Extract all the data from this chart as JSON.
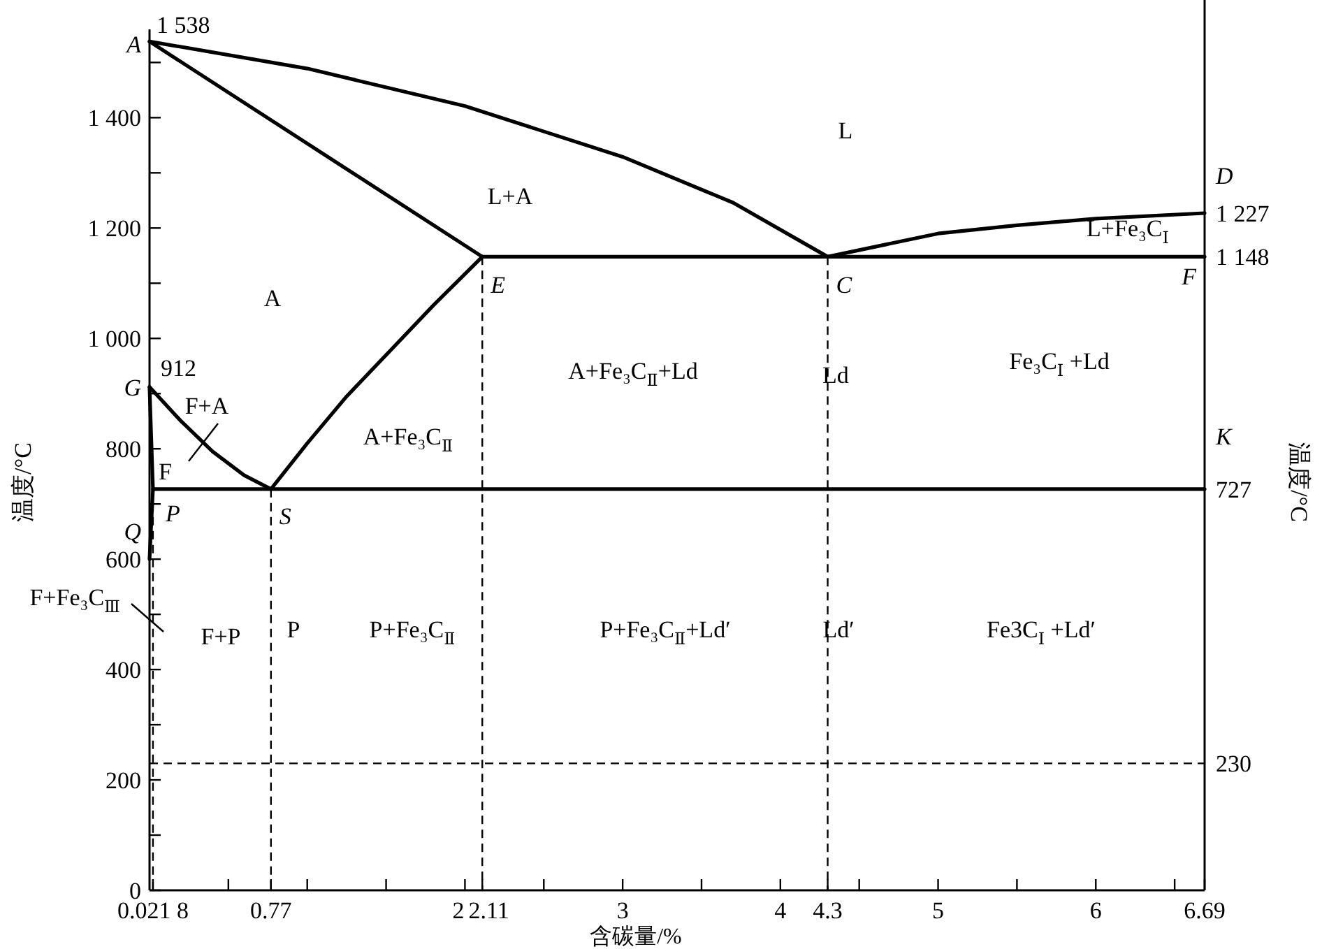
{
  "chart_data": {
    "type": "line",
    "xlabel": "含碳量/%",
    "ylabel": "温度/°C",
    "y2label": "温度/°C",
    "xlim": [
      0,
      6.69
    ],
    "ylim": [
      0,
      1560
    ],
    "y2lim": [
      0,
      1560
    ],
    "xticks": [
      {
        "value": 0.0218,
        "label": "0.021 8"
      },
      {
        "value": 0.5,
        "label": null
      },
      {
        "value": 0.77,
        "label": "0.77"
      },
      {
        "value": 1,
        "label": null
      },
      {
        "value": 1.5,
        "label": null
      },
      2,
      2.11,
      {
        "value": 2.5,
        "label": null
      },
      3,
      {
        "value": 3.5,
        "label": null
      },
      4,
      4.3,
      {
        "value": 4.5,
        "label": null
      },
      5,
      {
        "value": 5.5,
        "label": null
      },
      6,
      {
        "value": 6.5,
        "label": null
      },
      6.69
    ],
    "yticks": [
      0,
      {
        "value": 100,
        "label": null
      },
      200,
      {
        "value": 300,
        "label": null
      },
      400,
      {
        "value": 500,
        "label": null
      },
      600,
      {
        "value": 700,
        "label": null
      },
      800,
      {
        "value": 900,
        "label": null
      },
      {
        "value": 1000,
        "label": "1 000"
      },
      {
        "value": 1100,
        "label": null
      },
      {
        "value": 1200,
        "label": "1 200"
      },
      {
        "value": 1300,
        "label": null
      },
      {
        "value": 1400,
        "label": "1 400"
      },
      {
        "value": 1500,
        "label": null
      }
    ],
    "y2ticks": [
      {
        "value": 1227,
        "label": "1 227"
      },
      {
        "value": 1148,
        "label": "1 148"
      },
      727,
      230
    ],
    "grid": false,
    "series": [
      {
        "color": "#000000",
        "x": [
          0,
          1,
          2,
          3,
          3.7,
          4.3
        ],
        "values": [
          1538,
          1489,
          1421,
          1329,
          1246,
          1148
        ]
      },
      {
        "color": "#000000",
        "x": [
          0,
          2.11
        ],
        "values": [
          1538,
          1148
        ]
      },
      {
        "color": "#000000",
        "x": [
          4.3,
          5,
          5.5,
          6,
          6.69
        ],
        "values": [
          1148,
          1190,
          1205,
          1217,
          1227
        ]
      },
      {
        "color": "#000000",
        "x": [
          2.11,
          6.69
        ],
        "values": [
          1148,
          1148
        ]
      },
      {
        "color": "#000000",
        "x": [
          0.77,
          1,
          1.25,
          1.5,
          1.8,
          2.11
        ],
        "values": [
          727,
          810,
          895,
          970,
          1060,
          1148
        ]
      },
      {
        "color": "#000000",
        "x": [
          0,
          0.2,
          0.4,
          0.6,
          0.77
        ],
        "values": [
          912,
          850,
          795,
          752,
          727
        ]
      },
      {
        "color": "#000000",
        "x": [
          0,
          0.0218,
          0
        ],
        "values": [
          912,
          727,
          600
        ]
      },
      {
        "color": "#000000",
        "x": [
          0.0218,
          6.69
        ],
        "values": [
          727,
          727
        ]
      }
    ],
    "ref_lines": [
      {
        "axis": "y",
        "value": 230,
        "color": "#000000",
        "line_style": "dashed"
      },
      {
        "axis": "x",
        "value": 0.0218,
        "color": "#000000",
        "line_style": "dashed"
      },
      {
        "axis": "x",
        "value": 0.77,
        "color": "#000000",
        "line_style": "dashed"
      },
      {
        "axis": "x",
        "value": 2.11,
        "color": "#000000",
        "line_style": "dashed"
      },
      {
        "axis": "x",
        "value": 4.3,
        "color": "#000000",
        "line_style": "dashed"
      }
    ],
    "annotations": [
      {
        "text": "A",
        "x": 0,
        "y": 1538
      },
      {
        "text": "1 538",
        "x": 0,
        "y": 1538
      },
      {
        "text": "G",
        "x": 0,
        "y": 912
      },
      {
        "text": "912",
        "x": 0,
        "y": 912
      },
      {
        "text": "Q",
        "x": 0,
        "y": 600
      },
      "F+Fe₃C$_{Ⅲ}$",
      {
        "text": "P",
        "x": 0.0218,
        "y": 727
      },
      {
        "text": "S",
        "x": 0.77,
        "y": 727
      },
      {
        "text": "E",
        "x": 2.11,
        "y": 1148
      },
      {
        "text": "C",
        "x": 4.3,
        "y": 1148
      },
      {
        "text": "F",
        "x": 6.69,
        "y": 1148
      },
      {
        "text": "D",
        "x": 6.69,
        "y": 1227
      },
      {
        "text": "K",
        "x": 6.69,
        "y": 727
      },
      "L",
      "L+A",
      "L+Fe₃C$_{Ⅰ}$",
      "A",
      "A+Fe₃C$_{Ⅱ}$+Ld",
      "Ld",
      "Fe₃C$_{Ⅰ}$ +Ld",
      "F+A",
      "A+Fe₃C$_{Ⅱ}$",
      {
        "text": "F",
        "x": 0.0218,
        "y": 727
      },
      "F+P",
      "P",
      "P+Fe₃C$_{Ⅱ}$",
      "P+Fe₃C$_{Ⅱ}$+Ld′",
      "Ld′",
      "Fe3C$_{Ⅰ}$ +Ld′"
    ]
  }
}
